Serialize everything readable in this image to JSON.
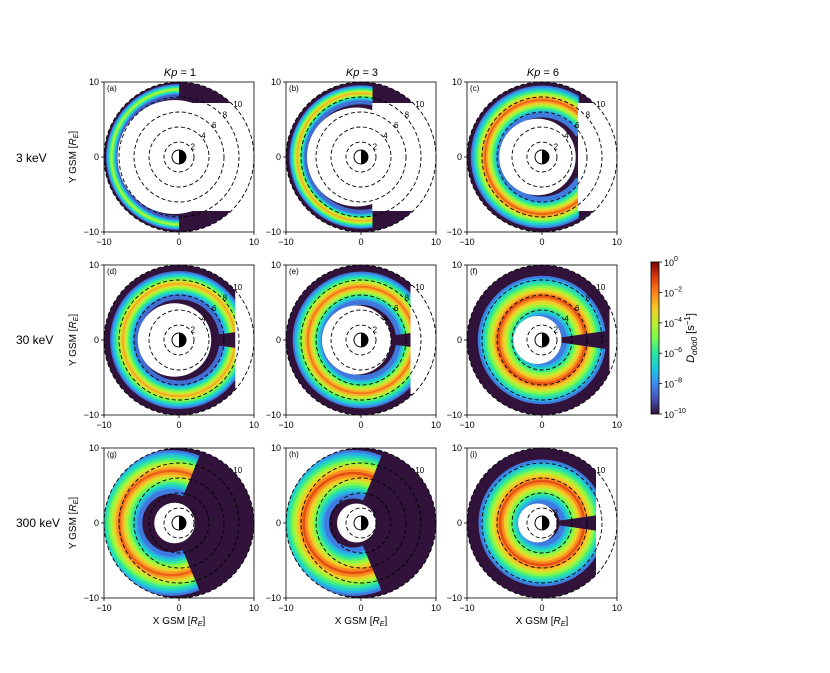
{
  "chart_data": {
    "type": "heatmap",
    "description_axes": {
      "xlabel": "X GSM [R_E]",
      "ylabel": "Y GSM [R_E]",
      "xlim": [
        -10,
        10
      ],
      "ylim": [
        -10,
        10
      ],
      "ticks": [
        "-10",
        "0",
        "10"
      ]
    },
    "columns": [
      {
        "label": "Kp = 1",
        "kp_symbol": "Kp",
        "kp_value": "= 1"
      },
      {
        "label": "Kp = 3",
        "kp_symbol": "Kp",
        "kp_value": "= 3"
      },
      {
        "label": "Kp = 6",
        "kp_symbol": "Kp",
        "kp_value": "= 6"
      }
    ],
    "rows": [
      {
        "label": "3 keV"
      },
      {
        "label": "30 keV"
      },
      {
        "label": "300 keV"
      }
    ],
    "panels": [
      {
        "tag": "(a)",
        "row": 0,
        "col": 0,
        "ring_labels": [
          "2",
          "4",
          "6",
          "8",
          "10"
        ],
        "inner_white_radius": 7.6,
        "band_center": 8.8,
        "band_width": 0.7,
        "band_peak_log": -4.0,
        "dusk_cut_x": 0.0,
        "dawn_cut_x": 0.8
      },
      {
        "tag": "(b)",
        "row": 0,
        "col": 1,
        "ring_labels": [
          "2",
          "4",
          "6",
          "8",
          "10"
        ],
        "inner_white_radius": 6.6,
        "band_center": 8.3,
        "band_width": 1.0,
        "band_peak_log": -2.5,
        "dusk_cut_x": 1.5,
        "dawn_cut_x": 1.5
      },
      {
        "tag": "(c)",
        "row": 0,
        "col": 2,
        "ring_labels": [
          "2",
          "4",
          "6",
          "8",
          "10"
        ],
        "inner_white_radius": 5.1,
        "band_center": 7.4,
        "band_width": 1.8,
        "band_peak_log": -1.5,
        "dusk_cut_x": 4.8,
        "dawn_cut_x": 4.2
      },
      {
        "tag": "(d)",
        "row": 1,
        "col": 0,
        "ring_labels": [
          "2",
          "4",
          "6",
          "8",
          "10"
        ],
        "inner_white_radius": 4.9,
        "band_center": 7.3,
        "band_width": 1.6,
        "band_peak_log": -2.5,
        "dusk_cut_x": 7.5,
        "dawn_cut_x": 7.5
      },
      {
        "tag": "(e)",
        "row": 1,
        "col": 1,
        "ring_labels": [
          "2",
          "4",
          "6",
          "8",
          "10"
        ],
        "inner_white_radius": 4.6,
        "band_center": 6.9,
        "band_width": 1.9,
        "band_peak_log": -1.8,
        "dusk_cut_x": 6.6,
        "dawn_cut_x": 6.6
      },
      {
        "tag": "(f)",
        "row": 1,
        "col": 2,
        "ring_labels": [
          "2",
          "4",
          "6",
          "8",
          "10"
        ],
        "inner_white_radius": 3.2,
        "band_center": 5.6,
        "band_width": 2.6,
        "band_peak_log": -1.3,
        "dusk_cut_x": 9.0,
        "dawn_cut_x": 9.0
      },
      {
        "tag": "(g)",
        "row": 2,
        "col": 0,
        "ring_labels": [
          "2",
          "10"
        ],
        "inner_white_radius": 2.7,
        "band_center": 6.8,
        "band_width": 2.6,
        "band_peak_log": -1.5,
        "dusk_cut_x": 10.0,
        "dawn_cut_x": 10.0
      },
      {
        "tag": "(h)",
        "row": 2,
        "col": 1,
        "ring_labels": [
          "2",
          "10"
        ],
        "inner_white_radius": 2.6,
        "band_center": 6.5,
        "band_width": 2.9,
        "band_peak_log": -1.3,
        "dusk_cut_x": 10.0,
        "dawn_cut_x": 10.0
      },
      {
        "tag": "(i)",
        "row": 2,
        "col": 2,
        "ring_labels": [
          "2",
          "10"
        ],
        "inner_white_radius": 2.6,
        "band_center": 5.4,
        "band_width": 2.7,
        "band_peak_log": -1.3,
        "dusk_cut_x": 7.2,
        "dawn_cut_x": 7.2
      }
    ],
    "colorbar": {
      "label": "D_{α0α0} [s^{-1}]",
      "label_main": "D",
      "label_sub": "α0α0",
      "label_units": "[s",
      "label_units_sup": "−1",
      "label_units_end": "]",
      "scale": "log",
      "range": [
        1e-10,
        1
      ],
      "ticks": [
        {
          "base": "10",
          "exp": "0"
        },
        {
          "base": "10",
          "exp": "−2"
        },
        {
          "base": "10",
          "exp": "−4"
        },
        {
          "base": "10",
          "exp": "−6"
        },
        {
          "base": "10",
          "exp": "−8"
        },
        {
          "base": "10",
          "exp": "−10"
        }
      ],
      "colormap": "turbo"
    }
  }
}
